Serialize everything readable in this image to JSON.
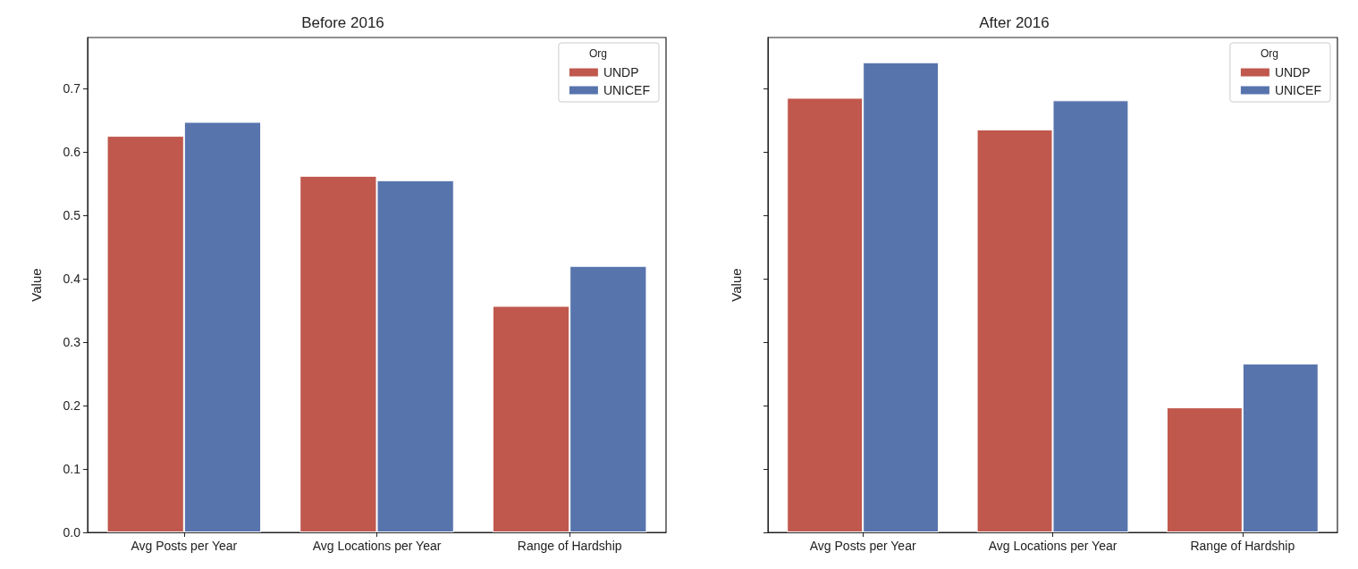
{
  "chart_data": [
    {
      "type": "bar",
      "title": "Before 2016",
      "ylabel": "Value",
      "categories": [
        "Avg Posts per Year",
        "Avg Locations per Year",
        "Range of Hardship"
      ],
      "series": [
        {
          "name": "UNDP",
          "color": "#c0584d",
          "values": [
            0.625,
            0.562,
            0.357
          ]
        },
        {
          "name": "UNICEF",
          "color": "#5874ad",
          "values": [
            0.647,
            0.555,
            0.42
          ]
        }
      ],
      "ylim": [
        0,
        0.78
      ],
      "yticks": [
        {
          "value": 0,
          "label": "0.0"
        },
        0.1,
        0.2,
        0.3,
        0.4,
        0.5,
        0.6,
        0.7
      ],
      "legend": "top right",
      "legend_title": "Org",
      "grid": false
    },
    {
      "type": "bar",
      "title": "After 2016",
      "ylabel": "Value",
      "categories": [
        "Avg Posts per Year",
        "Avg Locations per Year",
        "Range of Hardship"
      ],
      "series": [
        {
          "name": "UNDP",
          "color": "#c0584d",
          "values": [
            0.685,
            0.635,
            0.197
          ]
        },
        {
          "name": "UNICEF",
          "color": "#5874ad",
          "values": [
            0.741,
            0.681,
            0.266
          ]
        }
      ],
      "ylim": [
        0,
        0.78
      ],
      "yticks": [
        0,
        0.1,
        0.2,
        0.3,
        0.4,
        0.5,
        0.6,
        0.7
      ],
      "legend": "top right",
      "legend_title": "Org",
      "grid": false,
      "tick_labels": "x"
    }
  ]
}
